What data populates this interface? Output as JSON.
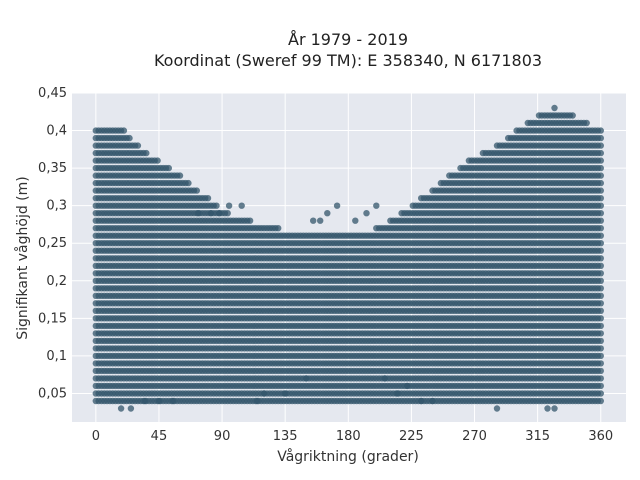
{
  "chart_data": {
    "type": "scatter",
    "title": "År 1979 - 2019",
    "subtitle": "Koordinat (Sweref 99 TM): E 358340, N 6171803",
    "xlabel": "Vågriktning (grader)",
    "ylabel": "Signifikant våghöjd (m)",
    "xlim": [
      -17,
      378
    ],
    "ylim": [
      0.012,
      0.45
    ],
    "xticks": [
      "0",
      "45",
      "90",
      "135",
      "180",
      "225",
      "270",
      "315",
      "360"
    ],
    "yticks": [
      "0,05",
      "0,1",
      "0,15",
      "0,2",
      "0,25",
      "0,3",
      "0,35",
      "0,4",
      "0,45"
    ],
    "grid": true,
    "marker_color": "#33566b",
    "background_color": "#e5e8ef",
    "y_step": 0.01,
    "envelope_upper": [
      {
        "x": 0,
        "y": 0.4
      },
      {
        "x": 20,
        "y": 0.4
      },
      {
        "x": 30,
        "y": 0.38
      },
      {
        "x": 45,
        "y": 0.36
      },
      {
        "x": 60,
        "y": 0.34
      },
      {
        "x": 80,
        "y": 0.31
      },
      {
        "x": 95,
        "y": 0.29
      },
      {
        "x": 110,
        "y": 0.28
      },
      {
        "x": 130,
        "y": 0.27
      },
      {
        "x": 150,
        "y": 0.26
      },
      {
        "x": 180,
        "y": 0.26
      },
      {
        "x": 200,
        "y": 0.27
      },
      {
        "x": 225,
        "y": 0.3
      },
      {
        "x": 245,
        "y": 0.33
      },
      {
        "x": 265,
        "y": 0.36
      },
      {
        "x": 285,
        "y": 0.38
      },
      {
        "x": 300,
        "y": 0.4
      },
      {
        "x": 315,
        "y": 0.42
      },
      {
        "x": 340,
        "y": 0.42
      },
      {
        "x": 360,
        "y": 0.4
      }
    ],
    "envelope_lower": [
      {
        "x": 0,
        "y": 0.04
      },
      {
        "x": 180,
        "y": 0.04
      },
      {
        "x": 360,
        "y": 0.04
      }
    ],
    "outliers": [
      {
        "x": 18,
        "y": 0.03
      },
      {
        "x": 25,
        "y": 0.03
      },
      {
        "x": 35,
        "y": 0.04
      },
      {
        "x": 45,
        "y": 0.04
      },
      {
        "x": 55,
        "y": 0.04
      },
      {
        "x": 73,
        "y": 0.29
      },
      {
        "x": 82,
        "y": 0.29
      },
      {
        "x": 88,
        "y": 0.29
      },
      {
        "x": 95,
        "y": 0.3
      },
      {
        "x": 104,
        "y": 0.3
      },
      {
        "x": 115,
        "y": 0.04
      },
      {
        "x": 120,
        "y": 0.05
      },
      {
        "x": 135,
        "y": 0.05
      },
      {
        "x": 150,
        "y": 0.07
      },
      {
        "x": 155,
        "y": 0.28
      },
      {
        "x": 160,
        "y": 0.28
      },
      {
        "x": 165,
        "y": 0.29
      },
      {
        "x": 172,
        "y": 0.3
      },
      {
        "x": 185,
        "y": 0.28
      },
      {
        "x": 193,
        "y": 0.29
      },
      {
        "x": 200,
        "y": 0.3
      },
      {
        "x": 206,
        "y": 0.07
      },
      {
        "x": 215,
        "y": 0.05
      },
      {
        "x": 222,
        "y": 0.06
      },
      {
        "x": 232,
        "y": 0.04
      },
      {
        "x": 240,
        "y": 0.04
      },
      {
        "x": 286,
        "y": 0.03
      },
      {
        "x": 322,
        "y": 0.03
      },
      {
        "x": 327,
        "y": 0.03
      },
      {
        "x": 327,
        "y": 0.43
      }
    ]
  }
}
